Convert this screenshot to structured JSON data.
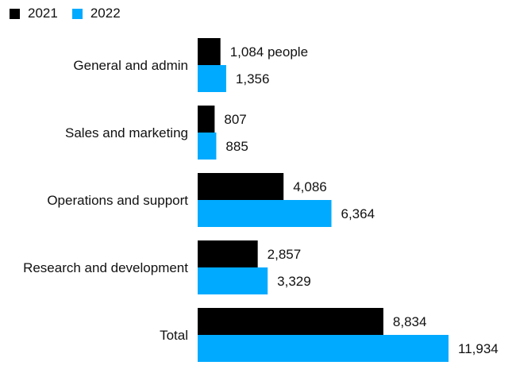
{
  "chart_data": {
    "type": "bar",
    "orientation": "horizontal",
    "categories": [
      "General and admin",
      "Sales and marketing",
      "Operations and support",
      "Research and development",
      "Total"
    ],
    "series": [
      {
        "name": "2021",
        "color": "#000000",
        "values": [
          1084,
          807,
          4086,
          2857,
          8834
        ],
        "labels": [
          "1,084 people",
          "807",
          "4,086",
          "2,857",
          "8,834"
        ]
      },
      {
        "name": "2022",
        "color": "#00aaff",
        "values": [
          1356,
          885,
          6364,
          3329,
          11934
        ],
        "labels": [
          "1,356",
          "885",
          "6,364",
          "3,329",
          "11,934"
        ]
      }
    ],
    "xlim": [
      0,
      11934
    ],
    "grid": false,
    "legend": "top-left"
  }
}
